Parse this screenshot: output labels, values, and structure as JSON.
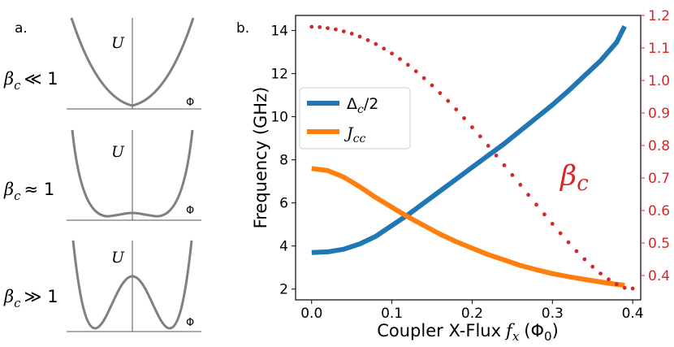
{
  "panel_a": {
    "label": "a.",
    "potential_label": "U",
    "flux_label": "Φ",
    "rows": [
      {
        "beta": "β",
        "sub": "c",
        "relation": "≪ 1"
      },
      {
        "beta": "β",
        "sub": "c",
        "relation": "≈ 1"
      },
      {
        "beta": "β",
        "sub": "c",
        "relation": "≫ 1"
      }
    ]
  },
  "panel_b": {
    "label": "b.",
    "beta_annotation": {
      "main": "β",
      "sub": "c"
    },
    "legend": [
      {
        "main": "Δ",
        "sub": "c",
        "suffix": "/2",
        "color": "#1f77b4"
      },
      {
        "main": "J",
        "sub": "cc",
        "suffix": "",
        "color": "#ff7f0e"
      }
    ]
  },
  "chart_data": {
    "type": "line",
    "xlabel": "Coupler X-Flux",
    "xlabel_var": "f",
    "xlabel_sub": "x",
    "xlabel_unit": "(Φ",
    "xlabel_unit_sub": "0",
    "xlabel_unit_end": ")",
    "ylabel": "Frequency (GHz)",
    "xlim": [
      -0.02,
      0.41
    ],
    "ylim": [
      1.5,
      14.7
    ],
    "y2lim": [
      0.325,
      1.2
    ],
    "x_ticks": [
      "0.0",
      "0.1",
      "0.2",
      "0.3",
      "0.4"
    ],
    "x_tick_values": [
      0,
      0.1,
      0.2,
      0.3,
      0.4
    ],
    "y_ticks": [
      "2",
      "4",
      "6",
      "8",
      "10",
      "12",
      "14"
    ],
    "y_tick_values": [
      2,
      4,
      6,
      8,
      10,
      12,
      14
    ],
    "y2_ticks": [
      "0.4",
      "0.5",
      "0.6",
      "0.7",
      "0.8",
      "0.9",
      "1.0",
      "1.1",
      "1.2"
    ],
    "y2_tick_values": [
      0.4,
      0.5,
      0.6,
      0.7,
      0.8,
      0.9,
      1.0,
      1.1,
      1.2
    ],
    "y2_color": "#d62728",
    "series": [
      {
        "name": "Δc/2",
        "axis": "left",
        "color": "#1f77b4",
        "x": [
          0,
          0.02,
          0.04,
          0.06,
          0.08,
          0.1,
          0.12,
          0.14,
          0.16,
          0.18,
          0.2,
          0.22,
          0.24,
          0.26,
          0.28,
          0.3,
          0.32,
          0.34,
          0.36,
          0.38,
          0.39
        ],
        "values": [
          3.7,
          3.73,
          3.85,
          4.1,
          4.45,
          4.95,
          5.45,
          6.0,
          6.55,
          7.1,
          7.65,
          8.2,
          8.75,
          9.35,
          9.95,
          10.55,
          11.2,
          11.9,
          12.6,
          13.45,
          14.2
        ]
      },
      {
        "name": "Jcc",
        "axis": "left",
        "color": "#ff7f0e",
        "x": [
          0,
          0.02,
          0.04,
          0.06,
          0.08,
          0.1,
          0.12,
          0.14,
          0.16,
          0.18,
          0.2,
          0.22,
          0.24,
          0.26,
          0.28,
          0.3,
          0.32,
          0.34,
          0.36,
          0.38,
          0.39
        ],
        "values": [
          7.6,
          7.5,
          7.2,
          6.75,
          6.25,
          5.8,
          5.35,
          4.95,
          4.55,
          4.2,
          3.9,
          3.6,
          3.35,
          3.1,
          2.9,
          2.72,
          2.58,
          2.45,
          2.33,
          2.22,
          2.18
        ]
      },
      {
        "name": "βc",
        "axis": "right",
        "style": "dotted",
        "color": "#d62728",
        "x": [
          0,
          0.01,
          0.02,
          0.03,
          0.04,
          0.05,
          0.06,
          0.07,
          0.08,
          0.09,
          0.1,
          0.11,
          0.12,
          0.13,
          0.14,
          0.15,
          0.16,
          0.17,
          0.18,
          0.19,
          0.2,
          0.21,
          0.22,
          0.23,
          0.24,
          0.25,
          0.26,
          0.27,
          0.28,
          0.29,
          0.3,
          0.31,
          0.32,
          0.33,
          0.34,
          0.35,
          0.36,
          0.37,
          0.38,
          0.39,
          0.4
        ],
        "values": [
          1.165,
          1.164,
          1.161,
          1.157,
          1.151,
          1.144,
          1.135,
          1.124,
          1.112,
          1.098,
          1.083,
          1.066,
          1.048,
          1.028,
          1.007,
          0.985,
          0.961,
          0.937,
          0.911,
          0.884,
          0.856,
          0.828,
          0.799,
          0.769,
          0.739,
          0.709,
          0.679,
          0.648,
          0.618,
          0.588,
          0.559,
          0.53,
          0.502,
          0.475,
          0.45,
          0.427,
          0.406,
          0.388,
          0.373,
          0.362,
          0.36
        ]
      }
    ]
  }
}
